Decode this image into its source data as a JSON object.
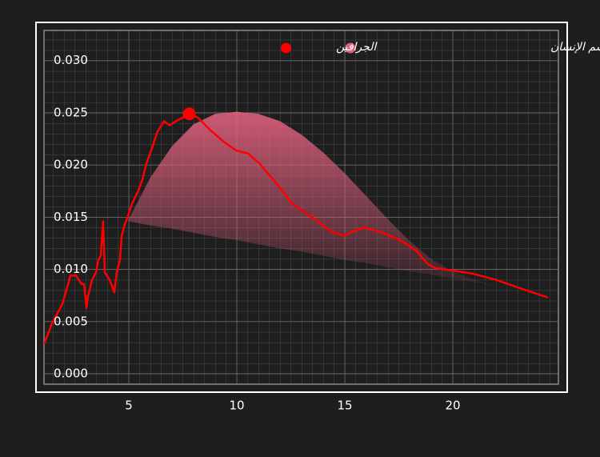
{
  "chart_data": {
    "type": "line",
    "xlim": [
      1,
      25
    ],
    "xticks": [
      5,
      10,
      15,
      20
    ],
    "ylim": [
      -0.001,
      0.033
    ],
    "yticks": [
      {
        "value": 0,
        "label": "0.000"
      },
      {
        "value": 0.005,
        "label": "0.005"
      },
      {
        "value": 0.01,
        "label": "0.010"
      },
      {
        "value": 0.015,
        "label": "0.015"
      },
      {
        "value": 0.02,
        "label": "0.020"
      },
      {
        "value": 0.025,
        "label": "0.025"
      },
      {
        "value": 0.03,
        "label": "0.030"
      }
    ],
    "grid": true,
    "legend": "top-right",
    "series": [
      {
        "name": "طيف الأشعة تحت الحمراء لجسم الإنسان",
        "type": "area",
        "color": "#e0607e",
        "x": [
          5,
          6,
          7,
          8,
          9,
          10,
          11,
          12,
          13,
          14,
          15,
          16,
          17,
          18,
          19,
          20,
          21,
          22,
          23,
          24
        ],
        "values": [
          0.0148,
          0.0188,
          0.0218,
          0.0239,
          0.0249,
          0.0251,
          0.0249,
          0.0242,
          0.0229,
          0.0212,
          0.0192,
          0.017,
          0.0148,
          0.0127,
          0.011,
          0.0098,
          0.009,
          0.0084,
          0.008,
          0.0076
        ],
        "lower_values": [
          0.0146,
          0.0142,
          0.0139,
          0.0135,
          0.0131,
          0.0128,
          0.0124,
          0.012,
          0.0117,
          0.0113,
          0.0109,
          0.0106,
          0.0102,
          0.0098,
          0.0095,
          0.0091,
          0.0088,
          0.0084,
          0.008,
          0.0076
        ]
      },
      {
        "name": "الجرافين",
        "type": "line",
        "color": "#ff0000",
        "x": [
          1.07,
          1.44,
          1.93,
          2.3,
          2.56,
          2.81,
          2.93,
          3.04,
          3.11,
          3.3,
          3.48,
          3.59,
          3.7,
          3.81,
          3.89,
          4.11,
          4.33,
          4.44,
          4.59,
          4.67,
          4.81,
          4.96,
          5.15,
          5.41,
          5.63,
          5.81,
          6.07,
          6.33,
          6.63,
          6.89,
          7.19,
          7.56,
          7.85,
          8.22,
          8.74,
          9.41,
          9.96,
          10.52,
          11.07,
          11.81,
          12.56,
          13.48,
          14.41,
          14.96,
          15.33,
          15.89,
          16.63,
          17.56,
          18.3,
          18.85,
          19.22,
          19.96,
          20.89,
          22,
          23.11,
          24.41
        ],
        "values": [
          0.0028,
          0.0048,
          0.0067,
          0.0094,
          0.0094,
          0.0086,
          0.0086,
          0.0063,
          0.0074,
          0.009,
          0.0097,
          0.0109,
          0.0113,
          0.0146,
          0.0097,
          0.009,
          0.0078,
          0.0097,
          0.0109,
          0.0132,
          0.0143,
          0.0151,
          0.0163,
          0.0174,
          0.0186,
          0.0201,
          0.0216,
          0.0232,
          0.0242,
          0.0238,
          0.0242,
          0.0246,
          0.0249,
          0.0245,
          0.0234,
          0.0222,
          0.0214,
          0.0211,
          0.0201,
          0.0183,
          0.0163,
          0.015,
          0.0136,
          0.0132,
          0.0136,
          0.014,
          0.0136,
          0.0128,
          0.0118,
          0.0105,
          0.0101,
          0.0099,
          0.0096,
          0.009,
          0.0082,
          0.0073
        ]
      }
    ],
    "marker": {
      "x": 7.8,
      "y": 0.0249
    }
  }
}
